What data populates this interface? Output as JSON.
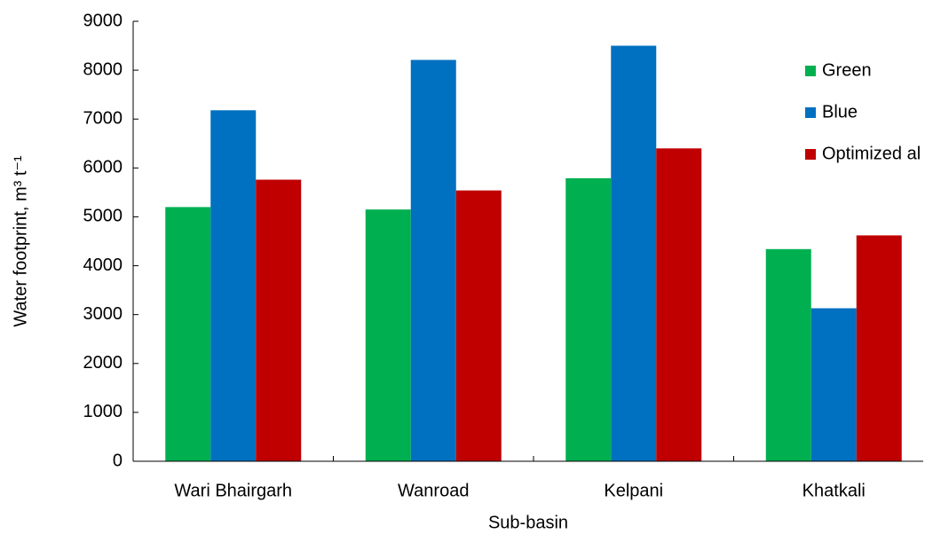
{
  "chart_data": {
    "type": "bar",
    "x_label": "Sub-basin",
    "y_label": "Water footprint, m³ t⁻¹",
    "categories": [
      "Wari Bhairgarh",
      "Wanroad",
      "Kelpani",
      "Khatkali"
    ],
    "series": [
      {
        "name": "Green",
        "color": "#00b050",
        "values": [
          5200,
          5150,
          5790,
          4340
        ]
      },
      {
        "name": "Blue",
        "color": "#0070c0",
        "values": [
          7180,
          8210,
          8500,
          3130
        ]
      },
      {
        "name": "Optimized al",
        "color": "#c00000",
        "values": [
          5760,
          5540,
          6400,
          4620
        ]
      }
    ],
    "ylim": [
      0,
      9000
    ],
    "yticks": [
      0,
      1000,
      2000,
      3000,
      4000,
      5000,
      6000,
      7000,
      8000,
      9000
    ],
    "grid": false,
    "legend": "top-right"
  }
}
